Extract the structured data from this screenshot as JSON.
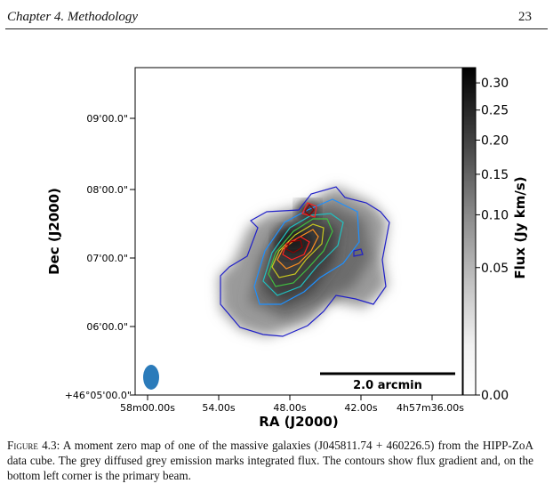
{
  "page": {
    "chapter_header": "Chapter 4.  Methodology",
    "page_number": "23"
  },
  "figure": {
    "axes": {
      "ylabel": "Dec (J2000)",
      "xlabel": "RA (J2000)",
      "yticks": [
        "09'00.0\"",
        "08'00.0\"",
        "07'00.0\"",
        "06'00.0\"",
        "+46°05'00.0\""
      ],
      "xticks": [
        "58m00.00s",
        "54.00s",
        "48.00s",
        "42.00s",
        "4h57m36.00s"
      ]
    },
    "colorbar": {
      "label": "Flux (Jy km/s)",
      "ticks": [
        "0.30",
        "0.25",
        "0.20",
        "0.15",
        "0.10",
        "0.05",
        "0.00"
      ],
      "tick_values": [
        0.3,
        0.25,
        0.2,
        0.15,
        0.1,
        0.05,
        0.0
      ],
      "min": 0.0,
      "max": 0.33,
      "scale": "nonlinear"
    },
    "scale_bar": {
      "label": "2.0 arcmin"
    },
    "beam": {
      "color": "#2b7bba",
      "position": "bottom-left"
    },
    "contour_colors": [
      "#2020c8",
      "#1e90ff",
      "#20c0c0",
      "#40c040",
      "#c8c820",
      "#ff9020",
      "#ff2020",
      "#8b0000"
    ]
  },
  "caption": {
    "label": "Figure 4.3:",
    "text": "A moment zero map of one of the massive galaxies (J045811.74 + 460226.5) from the HIPP-ZoA data cube. The grey diffused grey emission marks integrated flux. The contours show flux gradient and, on the bottom left corner is the primary beam."
  }
}
